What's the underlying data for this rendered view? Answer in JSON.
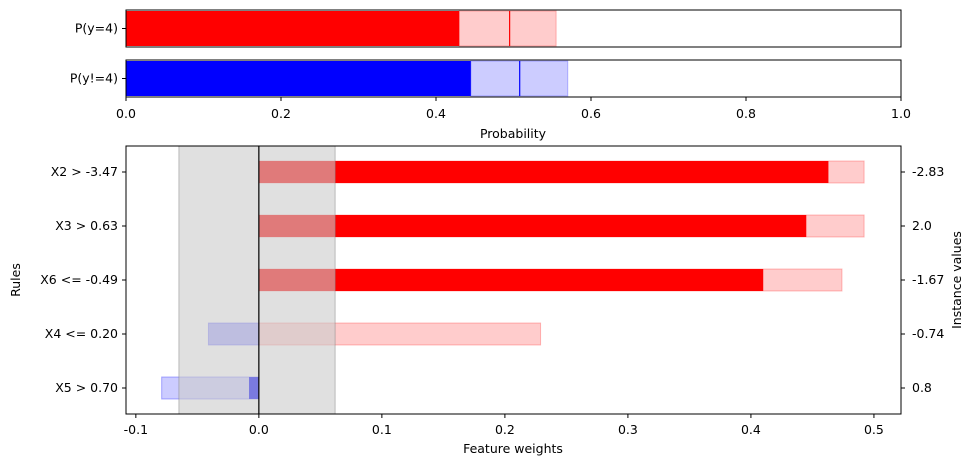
{
  "chart_data": [
    {
      "type": "bar",
      "orientation": "horizontal",
      "xlabel": "Probability",
      "xlim": [
        0,
        1
      ],
      "x_ticks": [
        "0.0",
        "0.2",
        "0.4",
        "0.6",
        "0.8",
        "1.0"
      ],
      "bars": [
        {
          "label": "P(y=4)",
          "value": 0.43,
          "interval": [
            0.43,
            0.555
          ],
          "marker": 0.495,
          "color": "#ff0000",
          "interval_color": "#ffcccc"
        },
        {
          "label": "P(y!=4)",
          "value": 0.445,
          "interval": [
            0.445,
            0.57
          ],
          "marker": 0.508,
          "color": "#0000ff",
          "interval_color": "#ccccff"
        }
      ]
    },
    {
      "type": "bar",
      "orientation": "horizontal",
      "xlabel": "Feature weights",
      "ylabel": "Rules",
      "right_ylabel": "Instance values",
      "xlim": [
        -0.108,
        0.522
      ],
      "x_ticks": [
        "-0.1",
        "0.0",
        "0.1",
        "0.2",
        "0.3",
        "0.4",
        "0.5"
      ],
      "shaded_band": [
        -0.065,
        0.062
      ],
      "rules": [
        {
          "label": "X2 > -3.47",
          "instance_value": "-2.83",
          "weight": 0.463,
          "interval": [
            0.0,
            0.492
          ],
          "sign": "positive"
        },
        {
          "label": "X3 > 0.63",
          "instance_value": "2.0",
          "weight": 0.445,
          "interval": [
            0.0,
            0.492
          ],
          "sign": "positive"
        },
        {
          "label": "X6 <= -0.49",
          "instance_value": "-1.67",
          "weight": 0.41,
          "interval": [
            0.0,
            0.474
          ],
          "sign": "positive"
        },
        {
          "label": "X4 <= 0.20",
          "instance_value": "-0.74",
          "weight": 0.0,
          "interval": [
            -0.041,
            0.229
          ],
          "sign": "mixed"
        },
        {
          "label": "X5 > 0.70",
          "instance_value": "0.8",
          "weight": -0.008,
          "interval": [
            -0.079,
            0.0
          ],
          "sign": "negative"
        }
      ],
      "colors": {
        "positive": "#ff0000",
        "positive_interval": "#ffcccc",
        "negative": "#0000ff",
        "negative_interval": "#aaaaff",
        "band": "#cccccc"
      }
    }
  ]
}
